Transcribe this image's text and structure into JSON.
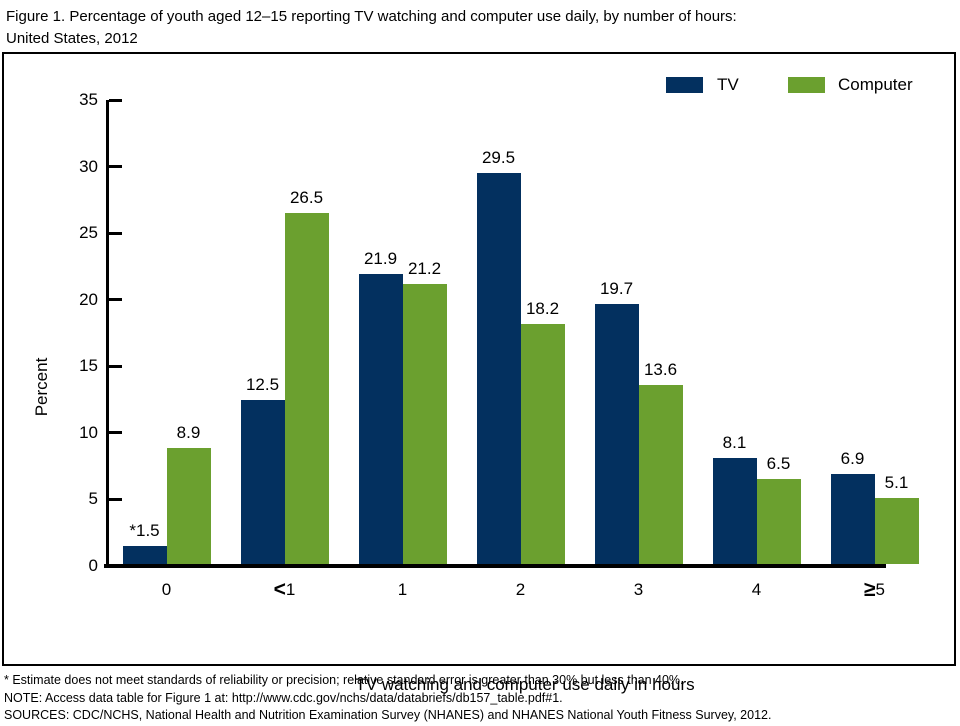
{
  "title": {
    "line1": "Figure 1. Percentage of youth aged 12–15 reporting TV watching and computer use daily, by number of hours:",
    "line2": "United States, 2012"
  },
  "chart_data": {
    "type": "bar",
    "categories": [
      "0",
      "<1",
      "1",
      "2",
      "3",
      "4",
      "≥5"
    ],
    "series": [
      {
        "name": "TV",
        "color": "#03305f",
        "values": [
          1.5,
          12.5,
          21.9,
          29.5,
          19.7,
          8.1,
          6.9
        ],
        "labels": [
          "*1.5",
          "12.5",
          "21.9",
          "29.5",
          "19.7",
          "8.1",
          "6.9"
        ]
      },
      {
        "name": "Computer",
        "color": "#6ba02f",
        "values": [
          8.9,
          26.5,
          21.2,
          18.2,
          13.6,
          6.5,
          5.1
        ],
        "labels": [
          "8.9",
          "26.5",
          "21.2",
          "18.2",
          "13.6",
          "6.5",
          "5.1"
        ]
      }
    ],
    "xlabel": "TV watching and computer use daily in hours",
    "ylabel": "Percent",
    "ylim": [
      0,
      35
    ],
    "ytick_step": 5,
    "legend_position": "top-right",
    "grid": false,
    "axis_color": "#000000"
  },
  "footnotes": [
    "* Estimate does not meet standards of reliability or precision; relative standard error is greater than 30% but less than 40%.",
    "NOTE: Access data table for Figure 1 at: http://www.cdc.gov/nchs/data/databriefs/db157_table.pdf#1.",
    "SOURCES: CDC/NCHS, National Health and Nutrition Examination Survey (NHANES) and NHANES National Youth Fitness Survey, 2012."
  ]
}
